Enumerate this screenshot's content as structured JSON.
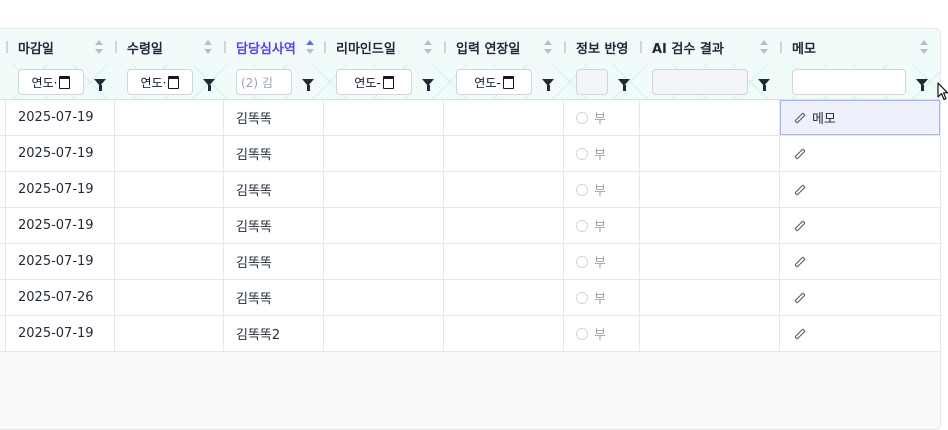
{
  "columns": [
    {
      "label": "마감일"
    },
    {
      "label": "수령일"
    },
    {
      "label": "담당심사역"
    },
    {
      "label": "리마인드일"
    },
    {
      "label": "입력 연장일"
    },
    {
      "label": "정보 반영"
    },
    {
      "label": "AI 검수 결과"
    },
    {
      "label": "메모"
    }
  ],
  "filters": {
    "deadline": "연도·",
    "received": "연도·",
    "reviewer": "(2) 김",
    "remind": "연도-",
    "extend": "연도-"
  },
  "rows": [
    {
      "deadline": "2025-07-19",
      "received": "",
      "reviewer": "김똑똑",
      "remind": "",
      "extend": "",
      "status": "부",
      "ai": "",
      "memo": "메모"
    },
    {
      "deadline": "2025-07-19",
      "received": "",
      "reviewer": "김똑똑",
      "remind": "",
      "extend": "",
      "status": "부",
      "ai": "",
      "memo": ""
    },
    {
      "deadline": "2025-07-19",
      "received": "",
      "reviewer": "김똑똑",
      "remind": "",
      "extend": "",
      "status": "부",
      "ai": "",
      "memo": ""
    },
    {
      "deadline": "2025-07-19",
      "received": "",
      "reviewer": "김똑똑",
      "remind": "",
      "extend": "",
      "status": "부",
      "ai": "",
      "memo": ""
    },
    {
      "deadline": "2025-07-19",
      "received": "",
      "reviewer": "김똑똑",
      "remind": "",
      "extend": "",
      "status": "부",
      "ai": "",
      "memo": ""
    },
    {
      "deadline": "2025-07-26",
      "received": "",
      "reviewer": "김똑똑",
      "remind": "",
      "extend": "",
      "status": "부",
      "ai": "",
      "memo": ""
    },
    {
      "deadline": "2025-07-19",
      "received": "",
      "reviewer": "김똑똑2",
      "remind": "",
      "extend": "",
      "status": "부",
      "ai": "",
      "memo": ""
    }
  ],
  "colors": {
    "accent": "#4f46e5",
    "header_bg": "#f1fbfa",
    "active_cell_bg": "#eef0fb"
  },
  "icons": {
    "sort": "sort-updown-icon",
    "filter": "filter-funnel-icon",
    "calendar": "calendar-icon",
    "status": "dotted-circle-icon",
    "memo": "pencil-icon"
  }
}
